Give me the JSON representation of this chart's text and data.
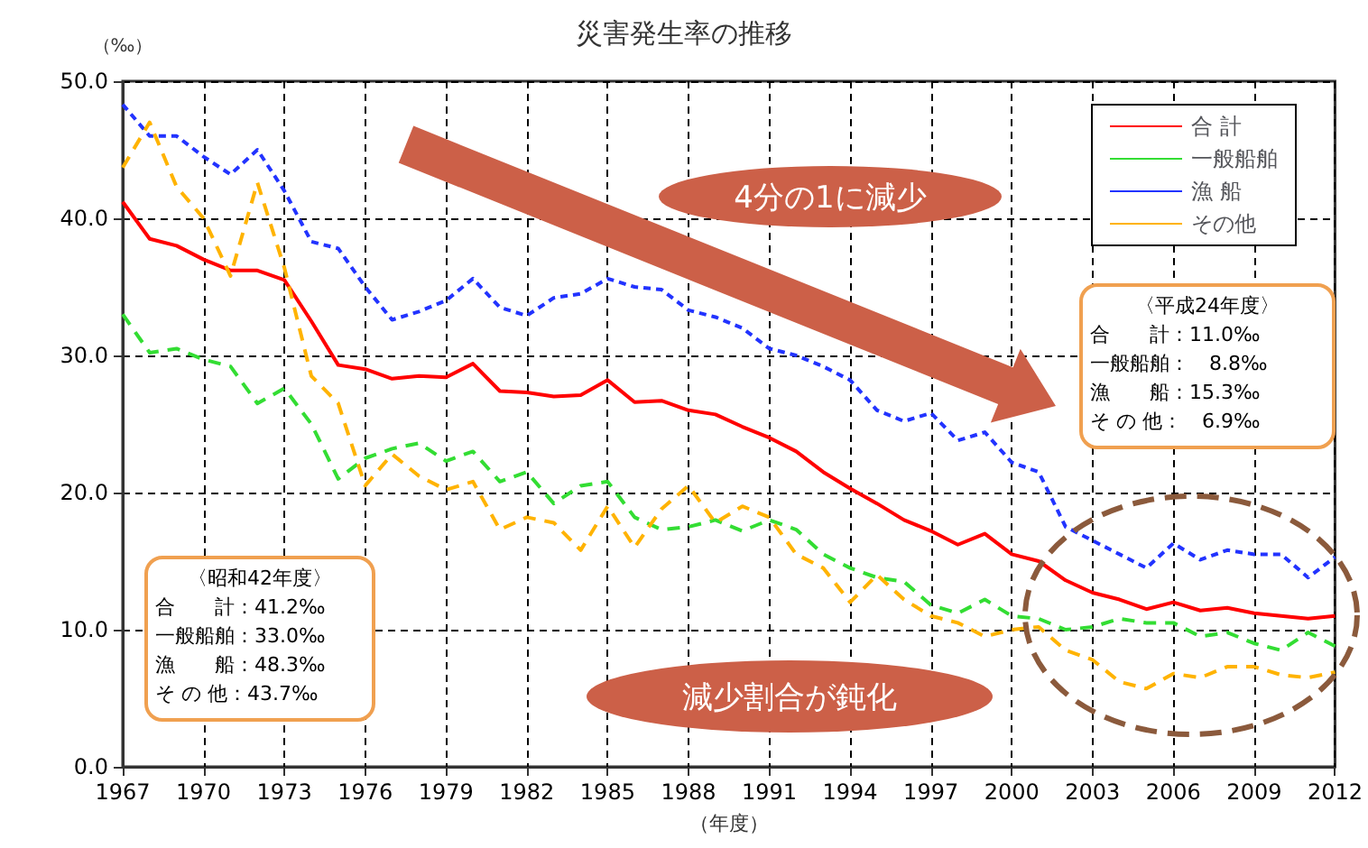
{
  "chart_data": {
    "type": "line",
    "title": "災害発生率の推移",
    "xlabel": "（年度）",
    "ylabel": "（‰）",
    "x": [
      1967,
      1968,
      1969,
      1970,
      1971,
      1972,
      1973,
      1974,
      1975,
      1976,
      1977,
      1978,
      1979,
      1980,
      1981,
      1982,
      1983,
      1984,
      1985,
      1986,
      1987,
      1988,
      1989,
      1990,
      1991,
      1992,
      1993,
      1994,
      1995,
      1996,
      1997,
      1998,
      1999,
      2000,
      2001,
      2002,
      2003,
      2004,
      2005,
      2006,
      2007,
      2008,
      2009,
      2010,
      2011,
      2012
    ],
    "series": [
      {
        "name": "合 計",
        "color": "#ff0000",
        "line_style": "solid",
        "values": [
          41.2,
          38.5,
          38.0,
          37.0,
          36.2,
          36.2,
          35.5,
          32.5,
          29.3,
          29.0,
          28.3,
          28.5,
          28.4,
          29.4,
          27.4,
          27.3,
          27.0,
          27.1,
          28.2,
          26.6,
          26.7,
          26.0,
          25.7,
          24.8,
          24.0,
          23.0,
          21.5,
          20.3,
          19.2,
          18.0,
          17.2,
          16.2,
          17.0,
          15.5,
          15.0,
          13.6,
          12.7,
          12.2,
          11.5,
          12.0,
          11.4,
          11.6,
          11.2,
          11.0,
          10.8,
          11.0
        ]
      },
      {
        "name": "一般船舶",
        "color": "#33dd33",
        "line_style": "dashed",
        "values": [
          33.0,
          30.2,
          30.5,
          29.7,
          29.2,
          26.5,
          27.6,
          25.0,
          21.0,
          22.5,
          23.2,
          23.6,
          22.3,
          23.0,
          20.8,
          21.5,
          19.2,
          20.5,
          20.8,
          18.2,
          17.3,
          17.5,
          18.0,
          17.2,
          18.0,
          17.3,
          15.5,
          14.5,
          13.8,
          13.5,
          11.8,
          11.2,
          12.2,
          11.0,
          10.8,
          10.0,
          10.2,
          10.8,
          10.5,
          10.5,
          9.5,
          9.8,
          9.0,
          8.5,
          9.8,
          8.8
        ]
      },
      {
        "name": "漁 船",
        "color": "#2233ff",
        "line_style": "dotted",
        "values": [
          48.3,
          46.0,
          46.0,
          44.5,
          43.2,
          45.0,
          42.0,
          38.3,
          37.8,
          35.0,
          32.6,
          33.2,
          34.0,
          35.6,
          33.5,
          32.9,
          34.2,
          34.5,
          35.6,
          35.0,
          34.8,
          33.3,
          32.8,
          32.0,
          30.5,
          30.0,
          29.2,
          28.2,
          26.0,
          25.2,
          25.8,
          23.8,
          24.4,
          22.2,
          21.5,
          17.5,
          16.5,
          15.5,
          14.5,
          16.3,
          15.1,
          15.8,
          15.5,
          15.5,
          13.8,
          15.3
        ]
      },
      {
        "name": "その他",
        "color": "#ffb300",
        "line_style": "dashed",
        "values": [
          43.7,
          47.0,
          42.3,
          40.0,
          35.8,
          42.6,
          36.4,
          28.5,
          26.5,
          20.5,
          22.8,
          21.2,
          20.2,
          20.8,
          17.3,
          18.2,
          17.8,
          15.8,
          19.0,
          16.0,
          18.8,
          20.5,
          17.8,
          19.0,
          18.2,
          15.5,
          14.5,
          12.0,
          14.0,
          12.2,
          11.0,
          10.5,
          9.5,
          10.0,
          10.2,
          8.5,
          7.8,
          6.2,
          5.7,
          6.8,
          6.5,
          7.3,
          7.3,
          6.7,
          6.5,
          6.9
        ]
      }
    ],
    "xlim": [
      1967,
      2012
    ],
    "xticks": [
      1967,
      1970,
      1973,
      1976,
      1979,
      1982,
      1985,
      1988,
      1991,
      1994,
      1997,
      2000,
      2003,
      2006,
      2009,
      2012
    ],
    "ylim": [
      0,
      50
    ],
    "yticks": [
      {
        "value": 0,
        "label": "0.0"
      },
      {
        "value": 10,
        "label": "10.0"
      },
      {
        "value": 20,
        "label": "20.0"
      },
      {
        "value": 30,
        "label": "30.0"
      },
      {
        "value": 40,
        "label": "40.0"
      },
      {
        "value": 50,
        "label": "50.0"
      }
    ],
    "grid": true,
    "legend": "top right",
    "marker": "none",
    "annotations": [
      "4分の1に減少",
      "減少割合が鈍化",
      "〈平成24年度〉",
      "合　　計：11.0‰",
      "一般船舶：　8.8‰",
      "漁　　船：15.3‰",
      "そ の 他：　6.9‰",
      "〈昭和42年度〉",
      "合　　計：41.2‰",
      "一般船舶：33.0‰",
      "漁　　船：48.3‰",
      "そ の 他：43.7‰"
    ]
  }
}
